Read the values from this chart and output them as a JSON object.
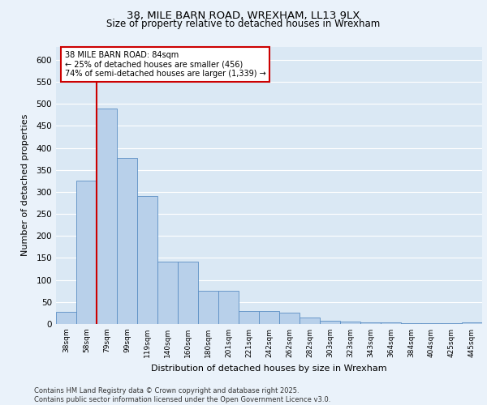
{
  "title_line1": "38, MILE BARN ROAD, WREXHAM, LL13 9LX",
  "title_line2": "Size of property relative to detached houses in Wrexham",
  "xlabel": "Distribution of detached houses by size in Wrexham",
  "ylabel": "Number of detached properties",
  "categories": [
    "38sqm",
    "58sqm",
    "79sqm",
    "99sqm",
    "119sqm",
    "140sqm",
    "160sqm",
    "180sqm",
    "201sqm",
    "221sqm",
    "242sqm",
    "262sqm",
    "282sqm",
    "303sqm",
    "323sqm",
    "343sqm",
    "364sqm",
    "384sqm",
    "404sqm",
    "425sqm",
    "445sqm"
  ],
  "values": [
    28,
    325,
    490,
    378,
    290,
    142,
    142,
    75,
    75,
    30,
    30,
    25,
    14,
    8,
    5,
    4,
    4,
    2,
    2,
    2,
    3
  ],
  "bar_color": "#b8d0ea",
  "bar_edge_color": "#5b8ec4",
  "vline_color": "#cc0000",
  "annotation_text": "38 MILE BARN ROAD: 84sqm\n← 25% of detached houses are smaller (456)\n74% of semi-detached houses are larger (1,339) →",
  "annotation_box_color": "#ffffff",
  "annotation_box_edge": "#cc0000",
  "plot_bg_color": "#dae8f4",
  "fig_bg_color": "#eaf2fa",
  "grid_color": "#ffffff",
  "footer_text": "Contains HM Land Registry data © Crown copyright and database right 2025.\nContains public sector information licensed under the Open Government Licence v3.0.",
  "ylim": [
    0,
    630
  ],
  "yticks": [
    0,
    50,
    100,
    150,
    200,
    250,
    300,
    350,
    400,
    450,
    500,
    550,
    600
  ]
}
